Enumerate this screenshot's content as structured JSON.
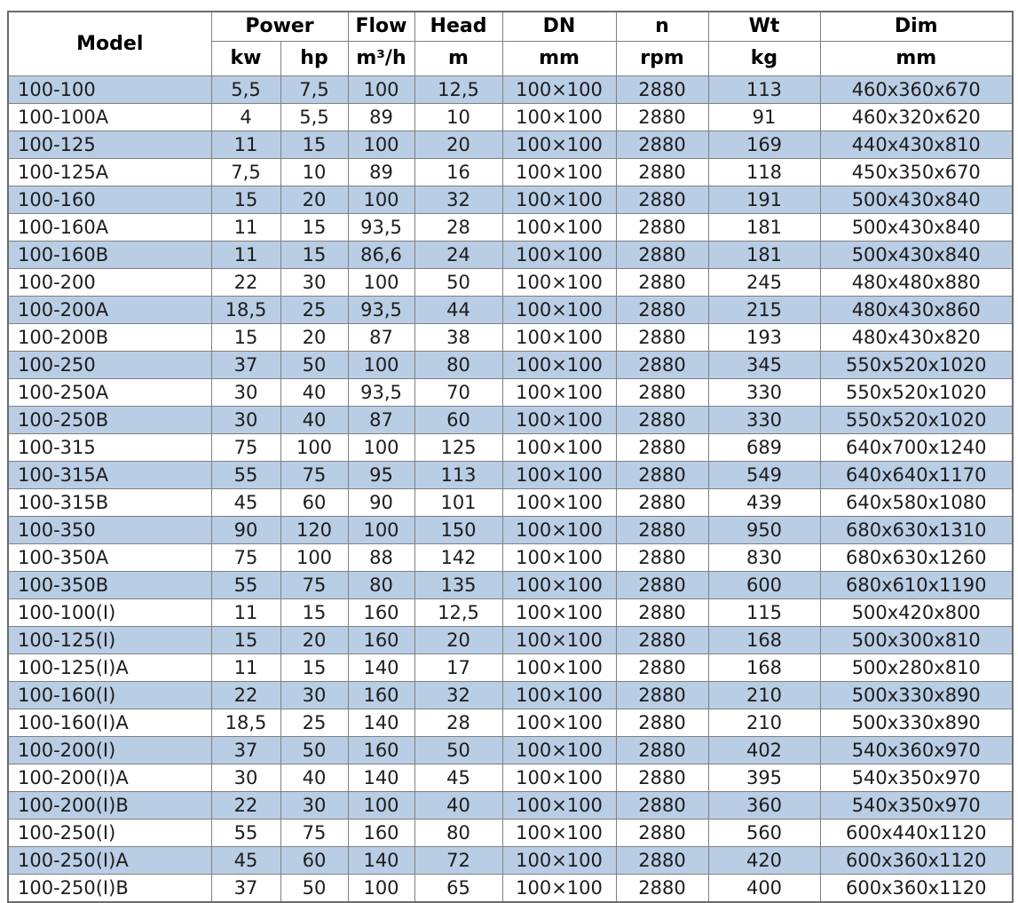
{
  "table": {
    "header": {
      "model": "Model",
      "power": "Power",
      "power_units": [
        "kw",
        "hp"
      ],
      "flow": "Flow",
      "flow_unit": "m³/h",
      "head": "Head",
      "head_unit": "m",
      "dn": "DN",
      "dn_unit": "mm",
      "n": "n",
      "n_unit": "rpm",
      "wt": "Wt",
      "wt_unit": "kg",
      "dim": "Dim",
      "dim_unit": "mm"
    },
    "rows": [
      {
        "model": "100-100",
        "kw": "5,5",
        "hp": "7,5",
        "flow": "100",
        "head": "12,5",
        "dn": "100×100",
        "rpm": "2880",
        "wt": "113",
        "dim": "460x360x670"
      },
      {
        "model": "100-100A",
        "kw": "4",
        "hp": "5,5",
        "flow": "89",
        "head": "10",
        "dn": "100×100",
        "rpm": "2880",
        "wt": "91",
        "dim": "460x320x620"
      },
      {
        "model": "100-125",
        "kw": "11",
        "hp": "15",
        "flow": "100",
        "head": "20",
        "dn": "100×100",
        "rpm": "2880",
        "wt": "169",
        "dim": "440x430x810"
      },
      {
        "model": "100-125A",
        "kw": "7,5",
        "hp": "10",
        "flow": "89",
        "head": "16",
        "dn": "100×100",
        "rpm": "2880",
        "wt": "118",
        "dim": "450x350x670"
      },
      {
        "model": "100-160",
        "kw": "15",
        "hp": "20",
        "flow": "100",
        "head": "32",
        "dn": "100×100",
        "rpm": "2880",
        "wt": "191",
        "dim": "500x430x840"
      },
      {
        "model": "100-160A",
        "kw": "11",
        "hp": "15",
        "flow": "93,5",
        "head": "28",
        "dn": "100×100",
        "rpm": "2880",
        "wt": "181",
        "dim": "500x430x840"
      },
      {
        "model": "100-160B",
        "kw": "11",
        "hp": "15",
        "flow": "86,6",
        "head": "24",
        "dn": "100×100",
        "rpm": "2880",
        "wt": "181",
        "dim": "500x430x840"
      },
      {
        "model": "100-200",
        "kw": "22",
        "hp": "30",
        "flow": "100",
        "head": "50",
        "dn": "100×100",
        "rpm": "2880",
        "wt": "245",
        "dim": "480x480x880"
      },
      {
        "model": "100-200A",
        "kw": "18,5",
        "hp": "25",
        "flow": "93,5",
        "head": "44",
        "dn": "100×100",
        "rpm": "2880",
        "wt": "215",
        "dim": "480x430x860"
      },
      {
        "model": "100-200B",
        "kw": "15",
        "hp": "20",
        "flow": "87",
        "head": "38",
        "dn": "100×100",
        "rpm": "2880",
        "wt": "193",
        "dim": "480x430x820"
      },
      {
        "model": "100-250",
        "kw": "37",
        "hp": "50",
        "flow": "100",
        "head": "80",
        "dn": "100×100",
        "rpm": "2880",
        "wt": "345",
        "dim": "550x520x1020"
      },
      {
        "model": "100-250A",
        "kw": "30",
        "hp": "40",
        "flow": "93,5",
        "head": "70",
        "dn": "100×100",
        "rpm": "2880",
        "wt": "330",
        "dim": "550x520x1020"
      },
      {
        "model": "100-250B",
        "kw": "30",
        "hp": "40",
        "flow": "87",
        "head": "60",
        "dn": "100×100",
        "rpm": "2880",
        "wt": "330",
        "dim": "550x520x1020"
      },
      {
        "model": "100-315",
        "kw": "75",
        "hp": "100",
        "flow": "100",
        "head": "125",
        "dn": "100×100",
        "rpm": "2880",
        "wt": "689",
        "dim": "640x700x1240"
      },
      {
        "model": "100-315A",
        "kw": "55",
        "hp": "75",
        "flow": "95",
        "head": "113",
        "dn": "100×100",
        "rpm": "2880",
        "wt": "549",
        "dim": "640x640x1170"
      },
      {
        "model": "100-315B",
        "kw": "45",
        "hp": "60",
        "flow": "90",
        "head": "101",
        "dn": "100×100",
        "rpm": "2880",
        "wt": "439",
        "dim": "640x580x1080"
      },
      {
        "model": "100-350",
        "kw": "90",
        "hp": "120",
        "flow": "100",
        "head": "150",
        "dn": "100×100",
        "rpm": "2880",
        "wt": "950",
        "dim": "680x630x1310"
      },
      {
        "model": "100-350A",
        "kw": "75",
        "hp": "100",
        "flow": "88",
        "head": "142",
        "dn": "100×100",
        "rpm": "2880",
        "wt": "830",
        "dim": "680x630x1260"
      },
      {
        "model": "100-350B",
        "kw": "55",
        "hp": "75",
        "flow": "80",
        "head": "135",
        "dn": "100×100",
        "rpm": "2880",
        "wt": "600",
        "dim": "680x610x1190"
      },
      {
        "model": "100-100(I)",
        "kw": "11",
        "hp": "15",
        "flow": "160",
        "head": "12,5",
        "dn": "100×100",
        "rpm": "2880",
        "wt": "115",
        "dim": "500x420x800"
      },
      {
        "model": "100-125(I)",
        "kw": "15",
        "hp": "20",
        "flow": "160",
        "head": "20",
        "dn": "100×100",
        "rpm": "2880",
        "wt": "168",
        "dim": "500x300x810"
      },
      {
        "model": "100-125(I)A",
        "kw": "11",
        "hp": "15",
        "flow": "140",
        "head": "17",
        "dn": "100×100",
        "rpm": "2880",
        "wt": "168",
        "dim": "500x280x810"
      },
      {
        "model": "100-160(I)",
        "kw": "22",
        "hp": "30",
        "flow": "160",
        "head": "32",
        "dn": "100×100",
        "rpm": "2880",
        "wt": "210",
        "dim": "500x330x890"
      },
      {
        "model": "100-160(I)A",
        "kw": "18,5",
        "hp": "25",
        "flow": "140",
        "head": "28",
        "dn": "100×100",
        "rpm": "2880",
        "wt": "210",
        "dim": "500x330x890"
      },
      {
        "model": "100-200(I)",
        "kw": "37",
        "hp": "50",
        "flow": "160",
        "head": "50",
        "dn": "100×100",
        "rpm": "2880",
        "wt": "402",
        "dim": "540x360x970"
      },
      {
        "model": "100-200(I)A",
        "kw": "30",
        "hp": "40",
        "flow": "140",
        "head": "45",
        "dn": "100×100",
        "rpm": "2880",
        "wt": "395",
        "dim": "540x350x970"
      },
      {
        "model": "100-200(I)B",
        "kw": "22",
        "hp": "30",
        "flow": "100",
        "head": "40",
        "dn": "100×100",
        "rpm": "2880",
        "wt": "360",
        "dim": "540x350x970"
      },
      {
        "model": "100-250(I)",
        "kw": "55",
        "hp": "75",
        "flow": "160",
        "head": "80",
        "dn": "100×100",
        "rpm": "2880",
        "wt": "560",
        "dim": "600x440x1120"
      },
      {
        "model": "100-250(I)A",
        "kw": "45",
        "hp": "60",
        "flow": "140",
        "head": "72",
        "dn": "100×100",
        "rpm": "2880",
        "wt": "420",
        "dim": "600x360x1120"
      },
      {
        "model": "100-250(I)B",
        "kw": "37",
        "hp": "50",
        "flow": "100",
        "head": "65",
        "dn": "100×100",
        "rpm": "2880",
        "wt": "400",
        "dim": "600x360x1120"
      }
    ],
    "colors": {
      "row_alt": "#b9cde5",
      "row_base": "#ffffff",
      "border": "#808080",
      "outer_border": "#6b6b6b",
      "header_text": "#000000",
      "cell_text": "#1d1d1d"
    }
  }
}
